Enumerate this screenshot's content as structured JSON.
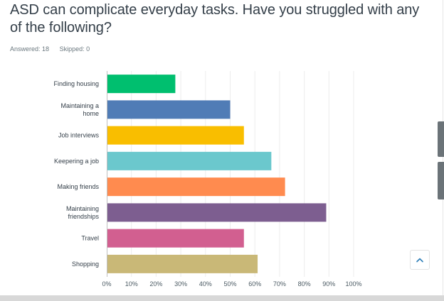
{
  "question": {
    "title": "ASD can complicate everyday tasks. Have you struggled with any of the following?",
    "answered_label": "Answered: 18",
    "skipped_label": "Skipped: 0"
  },
  "chart_data": {
    "type": "bar",
    "orientation": "horizontal",
    "categories": [
      "Finding housing",
      "Maintaining a home",
      "Job interviews",
      "Keepering a job",
      "Making friends",
      "Maintaining friendships",
      "Travel",
      "Shopping"
    ],
    "category_lines": [
      [
        "Finding housing"
      ],
      [
        "Maintaining a",
        "home"
      ],
      [
        "Job interviews"
      ],
      [
        "Keepering a job"
      ],
      [
        "Making friends"
      ],
      [
        "Maintaining",
        "friendships"
      ],
      [
        "Travel"
      ],
      [
        "Shopping"
      ]
    ],
    "values": [
      27.78,
      50.0,
      55.56,
      66.67,
      72.22,
      88.89,
      55.56,
      61.11
    ],
    "colors": [
      "#00bf6f",
      "#507cb6",
      "#f9be00",
      "#6bc8cd",
      "#ff8b4f",
      "#7d5e90",
      "#d25f90",
      "#c9b877"
    ],
    "xlim": [
      0,
      100
    ],
    "xticks": [
      "0%",
      "10%",
      "20%",
      "30%",
      "40%",
      "50%",
      "60%",
      "70%",
      "80%",
      "90%",
      "100%"
    ],
    "grid": true
  },
  "ui": {
    "scroll_top_icon": "chevron-up-icon",
    "accent": "#00bf6f"
  }
}
